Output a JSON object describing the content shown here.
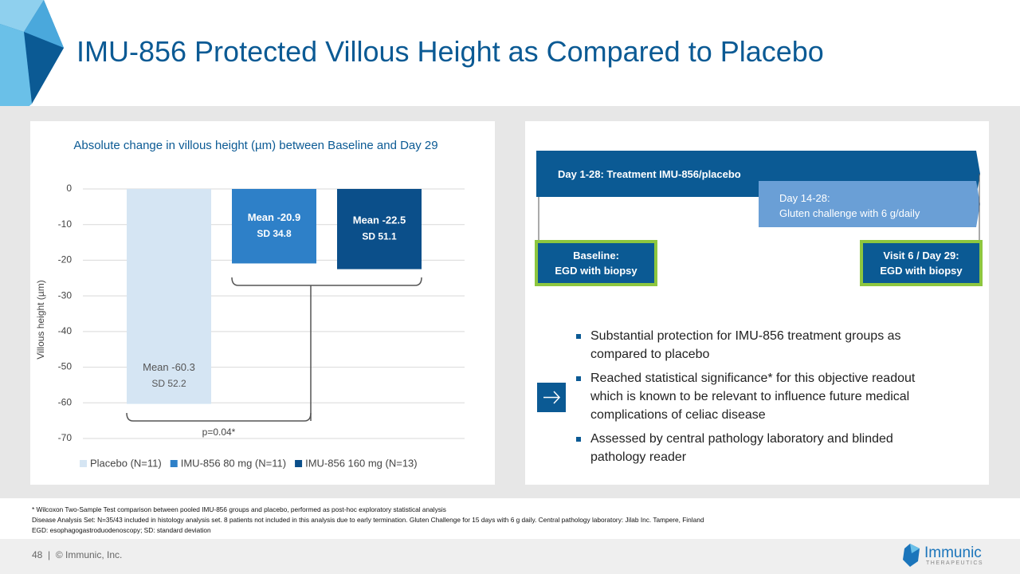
{
  "title": "IMU-856 Protected Villous Height as Compared to Placebo",
  "chart_data": {
    "type": "bar",
    "title": "Absolute change in villous height (µm) between Baseline and Day 29",
    "y_label": "Villous height (µm)",
    "ylim": [
      -70,
      0
    ],
    "yticks": [
      0,
      -10,
      -20,
      -30,
      -40,
      -50,
      -60,
      -70
    ],
    "grid": true,
    "legend": "bottom",
    "annotation": "p=0.04*",
    "series": [
      {
        "name": "Placebo (N=11)",
        "color": "#d5e5f3",
        "values": [
          -60.3
        ],
        "value_labels": [
          "Mean -60.3"
        ],
        "sd_labels": [
          "SD 52.2"
        ]
      },
      {
        "name": "IMU-856 80 mg (N=11)",
        "color": "#2e80c8",
        "values": [
          -20.9
        ],
        "value_labels": [
          "Mean -20.9"
        ],
        "sd_labels": [
          "SD 34.8"
        ]
      },
      {
        "name": "IMU-856 160 mg (N=13)",
        "color": "#0b4f8a",
        "values": [
          -22.5
        ],
        "value_labels": [
          "Mean -22.5"
        ],
        "sd_labels": [
          "SD 51.1"
        ]
      }
    ]
  },
  "timeline": {
    "treatment": "Day 1-28: Treatment IMU-856/placebo",
    "challenge": [
      "Day 14-28:",
      "Gluten challenge with 6 g/daily"
    ],
    "baseline": [
      "Baseline:",
      "EGD with biopsy"
    ],
    "visit": [
      "Visit 6 / Day 29:",
      "EGD with biopsy"
    ]
  },
  "bullets": [
    "Substantial protection for IMU-856 treatment groups as compared to placebo",
    "Reached statistical significance* for this objective readout which is known to be relevant to influence future medical complications of celiac disease",
    "Assessed by central pathology laboratory and blinded pathology reader"
  ],
  "footnotes": [
    "* Wilcoxon Two-Sample Test comparison between pooled IMU-856 groups and placebo, performed as post-hoc exploratory statistical analysis",
    "Disease Analysis Set: N=35/43 included in histology analysis set. 8 patients not included in this analysis due to early termination. Gluten Challenge for 15 days with 6 g daily. Central pathology laboratory: Jilab Inc. Tampere, Finland",
    "EGD: esophagogastroduodenoscopy; SD: standard deviation"
  ],
  "footer": {
    "page": "48",
    "separator": "|",
    "copyright": "© Immunic, Inc."
  },
  "logo": {
    "name": "Immunic",
    "tagline": "THERAPEUTICS"
  }
}
